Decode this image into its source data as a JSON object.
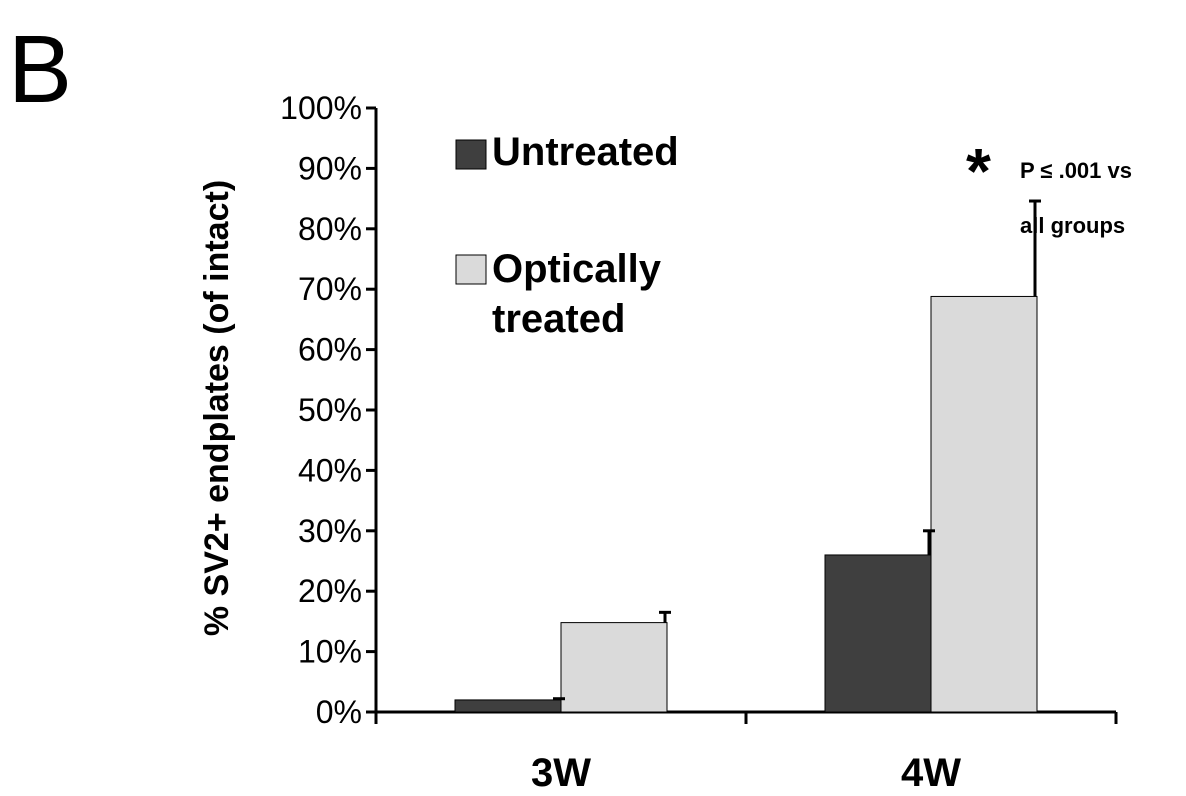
{
  "panel_label": "B",
  "colors": {
    "untreated": "#3f3f3f",
    "optically_treated": "#dadada",
    "axis": "#000000"
  },
  "chart_data": {
    "type": "bar",
    "categories": [
      "3W",
      "4W"
    ],
    "series": [
      {
        "name": "Untreated",
        "values": [
          2,
          26
        ],
        "errors": [
          0.2,
          4
        ]
      },
      {
        "name": "Optically treated",
        "values": [
          14.8,
          68.8
        ],
        "errors": [
          1.7,
          15.8
        ]
      }
    ],
    "ylabel": "% SV2+ endplates (of intact)",
    "ylim": [
      0,
      100
    ],
    "y_ticks": [
      "0%",
      "10%",
      "20%",
      "30%",
      "40%",
      "50%",
      "60%",
      "70%",
      "80%",
      "90%",
      "100%"
    ],
    "legend": {
      "entries": [
        {
          "lines": [
            "Untreated"
          ]
        },
        {
          "lines": [
            "Optically",
            "treated"
          ]
        }
      ],
      "placement": "top-left"
    },
    "annotations": [
      {
        "symbol": "*",
        "lines": [
          "P ≤ .001 vs",
          "all groups"
        ],
        "target": "4W Optically treated"
      }
    ],
    "grid": false
  }
}
